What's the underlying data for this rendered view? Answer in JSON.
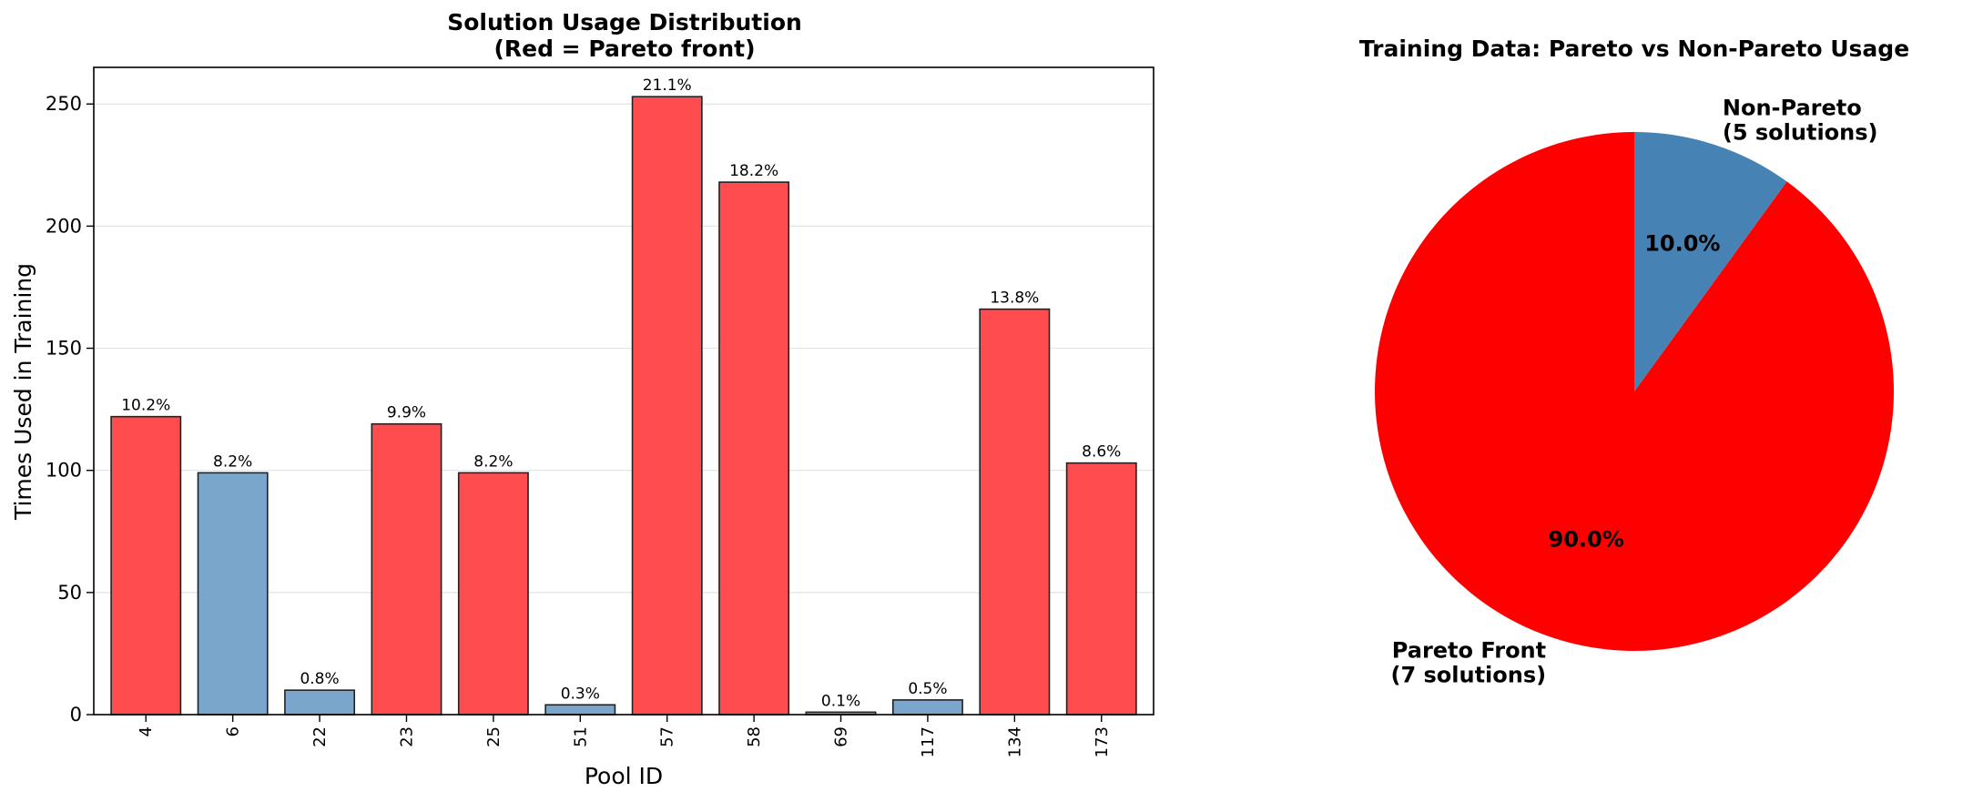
{
  "chart_data": [
    {
      "type": "bar",
      "title_lines": [
        "Solution Usage Distribution",
        "(Red = Pareto front)"
      ],
      "xlabel": "Pool ID",
      "ylabel": "Times Used in Training",
      "categories": [
        "4",
        "6",
        "22",
        "23",
        "25",
        "51",
        "57",
        "58",
        "69",
        "117",
        "134",
        "173"
      ],
      "values": [
        122,
        99,
        10,
        119,
        99,
        4,
        253,
        218,
        1,
        6,
        166,
        103
      ],
      "pareto": [
        true,
        false,
        false,
        true,
        true,
        false,
        true,
        true,
        false,
        false,
        true,
        true
      ],
      "value_labels": [
        "10.2%",
        "8.2%",
        "0.8%",
        "9.9%",
        "8.2%",
        "0.3%",
        "21.1%",
        "18.2%",
        "0.1%",
        "0.5%",
        "13.8%",
        "8.6%"
      ],
      "ylim": [
        0,
        265
      ],
      "yticks": [
        0,
        50,
        100,
        150,
        200,
        250
      ],
      "grid": "y",
      "colors": {
        "pareto": "#ff4d4f",
        "non_pareto": "#7ba6cb",
        "edge": "#222222",
        "grid": "#e3e3e3"
      }
    },
    {
      "type": "pie",
      "title": "Training Data: Pareto vs Non-Pareto Usage",
      "slices": [
        {
          "label_lines": [
            "Pareto Front",
            "(7 solutions)"
          ],
          "value": 90.0,
          "pct_label": "90.0%",
          "color": "#ff0000"
        },
        {
          "label_lines": [
            "Non-Pareto",
            "(5 solutions)"
          ],
          "value": 10.0,
          "pct_label": "10.0%",
          "color": "#4682b4"
        }
      ],
      "start_angle": "top",
      "direction": "counterclockwise"
    }
  ]
}
